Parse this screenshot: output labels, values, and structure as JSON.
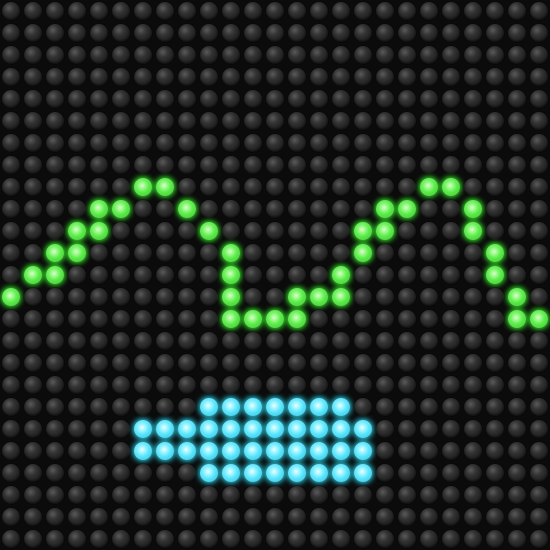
{
  "board": {
    "cols": 25,
    "rows": 25,
    "off_color": "#2a2a2a"
  },
  "colors": {
    "green": {
      "core": "#d8ffc8",
      "mid": "#5cf04a",
      "edge": "#2fb51f",
      "glow": "#39ff2a"
    },
    "cyan": {
      "core": "#e8ffff",
      "mid": "#5fe9ff",
      "edge": "#1cb4d8",
      "glow": "#2fe6ff"
    }
  },
  "lit_cells": {
    "green": [
      [
        0,
        13
      ],
      [
        1,
        12
      ],
      [
        2,
        11
      ],
      [
        2,
        12
      ],
      [
        3,
        10
      ],
      [
        3,
        11
      ],
      [
        4,
        9
      ],
      [
        4,
        10
      ],
      [
        5,
        9
      ],
      [
        6,
        8
      ],
      [
        7,
        8
      ],
      [
        8,
        9
      ],
      [
        9,
        10
      ],
      [
        10,
        11
      ],
      [
        10,
        12
      ],
      [
        10,
        13
      ],
      [
        10,
        14
      ],
      [
        11,
        14
      ],
      [
        12,
        14
      ],
      [
        13,
        13
      ],
      [
        13,
        14
      ],
      [
        14,
        13
      ],
      [
        15,
        12
      ],
      [
        15,
        13
      ],
      [
        16,
        10
      ],
      [
        16,
        11
      ],
      [
        17,
        9
      ],
      [
        17,
        10
      ],
      [
        18,
        9
      ],
      [
        19,
        8
      ],
      [
        20,
        8
      ],
      [
        21,
        9
      ],
      [
        21,
        10
      ],
      [
        22,
        11
      ],
      [
        22,
        12
      ],
      [
        23,
        13
      ],
      [
        23,
        14
      ],
      [
        24,
        14
      ]
    ],
    "cyan": [
      [
        9,
        18
      ],
      [
        10,
        18
      ],
      [
        11,
        18
      ],
      [
        12,
        18
      ],
      [
        13,
        18
      ],
      [
        14,
        18
      ],
      [
        15,
        18
      ],
      [
        6,
        19
      ],
      [
        7,
        19
      ],
      [
        8,
        19
      ],
      [
        9,
        19
      ],
      [
        10,
        19
      ],
      [
        11,
        19
      ],
      [
        12,
        19
      ],
      [
        13,
        19
      ],
      [
        14,
        19
      ],
      [
        15,
        19
      ],
      [
        16,
        19
      ],
      [
        6,
        20
      ],
      [
        7,
        20
      ],
      [
        8,
        20
      ],
      [
        9,
        20
      ],
      [
        10,
        20
      ],
      [
        11,
        20
      ],
      [
        12,
        20
      ],
      [
        13,
        20
      ],
      [
        14,
        20
      ],
      [
        15,
        20
      ],
      [
        16,
        20
      ],
      [
        9,
        21
      ],
      [
        10,
        21
      ],
      [
        11,
        21
      ],
      [
        12,
        21
      ],
      [
        13,
        21
      ],
      [
        14,
        21
      ],
      [
        15,
        21
      ],
      [
        16,
        21
      ]
    ]
  }
}
